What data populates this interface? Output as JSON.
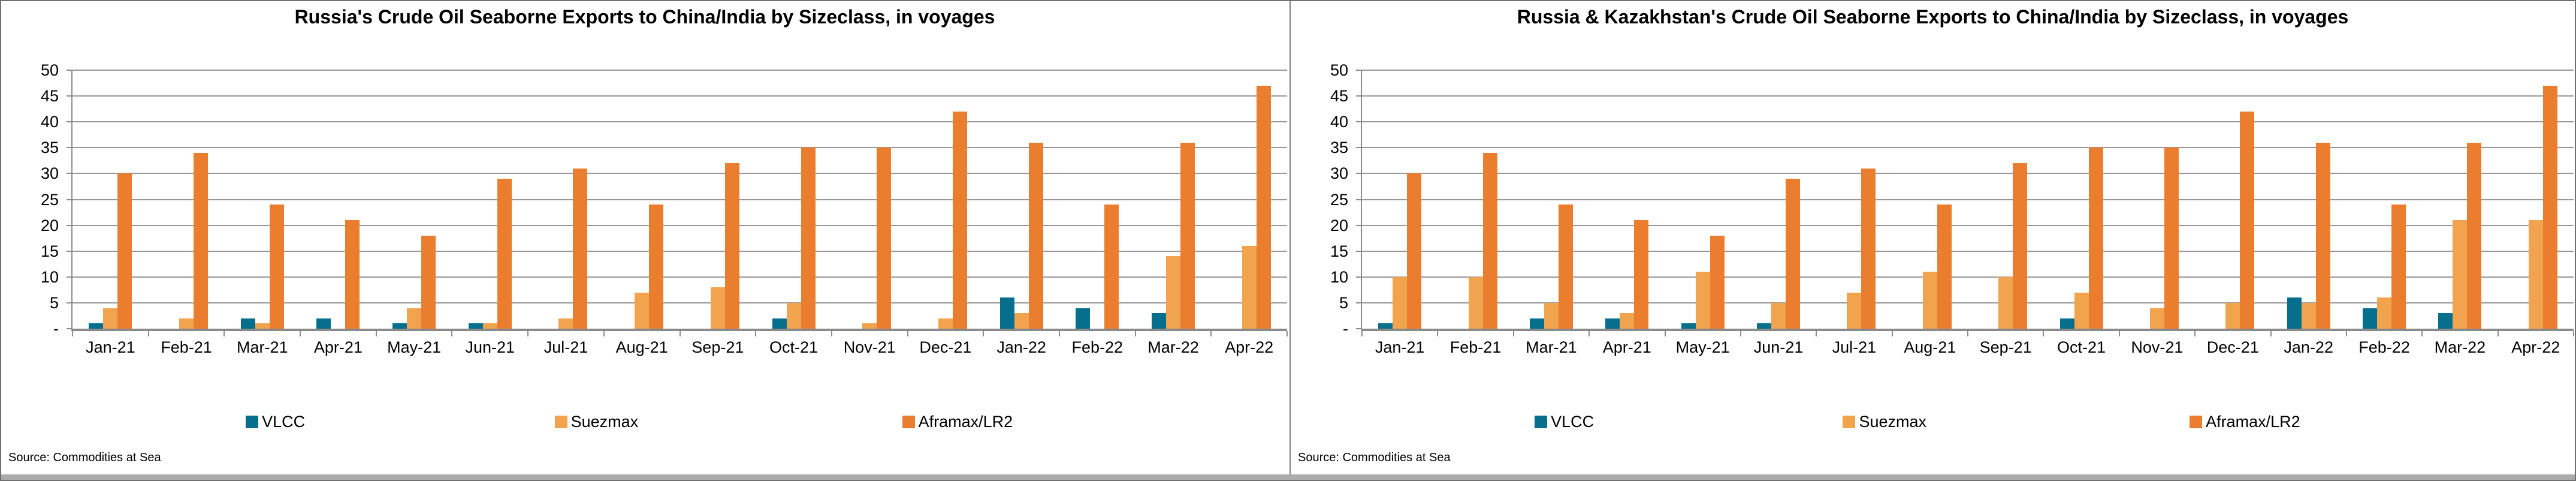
{
  "colors": {
    "vlcc": "#066F8D",
    "suezmax": "#F2A34D",
    "aframax_lr2": "#EB7D2F",
    "gridline": "#979797",
    "axis": "#8A8A8A",
    "panel_border": "#7F7F7F",
    "bottom_strip": "#ABABAB",
    "title_text": "#000000"
  },
  "source_note": "Source: Commodities at Sea",
  "y_axis": {
    "max": 50,
    "step": 5,
    "ticks": [
      {
        "value": 50,
        "label": "50"
      },
      {
        "value": 45,
        "label": "45"
      },
      {
        "value": 40,
        "label": "40"
      },
      {
        "value": 35,
        "label": "35"
      },
      {
        "value": 30,
        "label": "30"
      },
      {
        "value": 25,
        "label": "25"
      },
      {
        "value": 20,
        "label": "20"
      },
      {
        "value": 15,
        "label": "15"
      },
      {
        "value": 10,
        "label": "10"
      },
      {
        "value": 5,
        "label": "5"
      },
      {
        "value": 0,
        "label": "-"
      }
    ]
  },
  "legend": [
    {
      "label": "VLCC",
      "color": "#066F8D",
      "left_pct": 19
    },
    {
      "label": "Suezmax",
      "color": "#F2A34D",
      "left_pct": 43
    },
    {
      "label": "Aframax/LR2",
      "color": "#EB7D2F",
      "left_pct": 70
    }
  ],
  "chart_data": [
    {
      "type": "bar",
      "title": "Russia's Crude Oil Seaborne Exports to China/India by Sizeclass, in voyages",
      "xlabel": "",
      "ylabel": "",
      "ylim": [
        0,
        50
      ],
      "grid": true,
      "legend_position": "bottom",
      "categories": [
        "Jan-21",
        "Feb-21",
        "Mar-21",
        "Apr-21",
        "May-21",
        "Jun-21",
        "Jul-21",
        "Aug-21",
        "Sep-21",
        "Oct-21",
        "Nov-21",
        "Dec-21",
        "Jan-22",
        "Feb-22",
        "Mar-22",
        "Apr-22"
      ],
      "series": [
        {
          "name": "VLCC",
          "color": "#066F8D",
          "values": [
            1,
            0,
            2,
            2,
            1,
            1,
            0,
            0,
            0,
            2,
            0,
            0,
            6,
            4,
            3,
            0
          ]
        },
        {
          "name": "Suezmax",
          "color": "#F2A34D",
          "values": [
            4,
            2,
            1,
            0,
            4,
            1,
            2,
            7,
            8,
            5,
            1,
            2,
            3,
            0,
            14,
            16
          ]
        },
        {
          "name": "Aframax/LR2",
          "color": "#EB7D2F",
          "values": [
            30,
            34,
            24,
            21,
            18,
            29,
            31,
            24,
            32,
            35,
            35,
            42,
            36,
            24,
            36,
            47
          ]
        }
      ]
    },
    {
      "type": "bar",
      "title": "Russia & Kazakhstan's Crude Oil Seaborne Exports to China/India by Sizeclass, in voyages",
      "xlabel": "",
      "ylabel": "",
      "ylim": [
        0,
        50
      ],
      "grid": true,
      "legend_position": "bottom",
      "categories": [
        "Jan-21",
        "Feb-21",
        "Mar-21",
        "Apr-21",
        "May-21",
        "Jun-21",
        "Jul-21",
        "Aug-21",
        "Sep-21",
        "Oct-21",
        "Nov-21",
        "Dec-21",
        "Jan-22",
        "Feb-22",
        "Mar-22",
        "Apr-22"
      ],
      "series": [
        {
          "name": "VLCC",
          "color": "#066F8D",
          "values": [
            1,
            0,
            2,
            2,
            1,
            1,
            0,
            0,
            0,
            2,
            0,
            0,
            6,
            4,
            3,
            0
          ]
        },
        {
          "name": "Suezmax",
          "color": "#F2A34D",
          "values": [
            10,
            10,
            5,
            3,
            11,
            5,
            7,
            11,
            10,
            7,
            4,
            5,
            5,
            6,
            21,
            21
          ]
        },
        {
          "name": "Aframax/LR2",
          "color": "#EB7D2F",
          "values": [
            30,
            34,
            24,
            21,
            18,
            29,
            31,
            24,
            32,
            35,
            35,
            42,
            36,
            24,
            36,
            47
          ]
        }
      ]
    }
  ]
}
